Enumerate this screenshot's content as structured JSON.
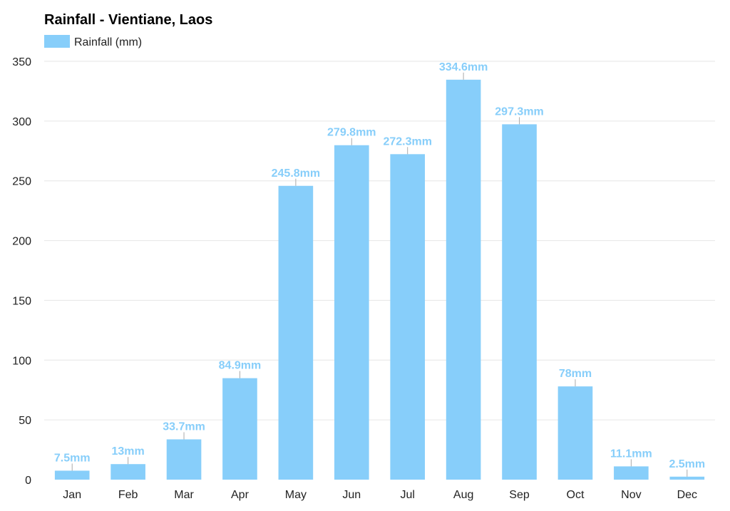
{
  "chart_data": {
    "type": "bar",
    "title": "Rainfall - Vientiane, Laos",
    "categories": [
      "Jan",
      "Feb",
      "Mar",
      "Apr",
      "May",
      "Jun",
      "Jul",
      "Aug",
      "Sep",
      "Oct",
      "Nov",
      "Dec"
    ],
    "series": [
      {
        "name": "Rainfall (mm)",
        "values": [
          7.5,
          13,
          33.7,
          84.9,
          245.8,
          279.8,
          272.3,
          334.6,
          297.3,
          78,
          11.1,
          2.5
        ],
        "labels": [
          "7.5mm",
          "13mm",
          "33.7mm",
          "84.9mm",
          "245.8mm",
          "279.8mm",
          "272.3mm",
          "334.6mm",
          "297.3mm",
          "78mm",
          "11.1mm",
          "2.5mm"
        ],
        "color": "#87cefa"
      }
    ],
    "ylim": [
      0,
      350
    ],
    "yticks": [
      0,
      50,
      100,
      150,
      200,
      250,
      300,
      350
    ],
    "grid": true,
    "legend_position": "top-left",
    "label_color": "#87cefa"
  }
}
